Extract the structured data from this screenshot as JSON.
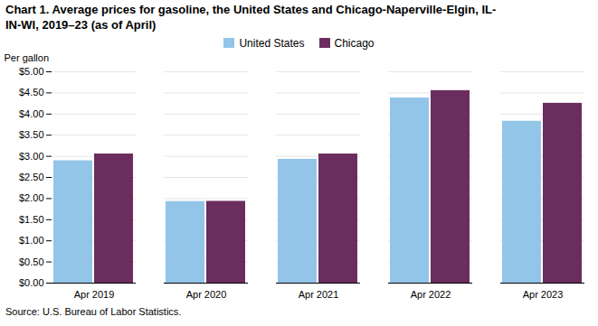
{
  "chart_data": {
    "type": "bar",
    "title": "Chart 1. Average prices for gasoline, the United States and Chicago-Naperville-Elgin, IL-\nIN-WI, 2019–23 (as of April)",
    "ylabel": "Per gallon",
    "source": "Source: U.S. Bureau of Labor Statistics.",
    "categories": [
      "Apr 2019",
      "Apr 2020",
      "Apr 2021",
      "Apr 2022",
      "Apr 2023"
    ],
    "series": [
      {
        "name": "United States",
        "color": "#92C5E8",
        "values": [
          2.895,
          1.93,
          2.93,
          4.38,
          3.83
        ]
      },
      {
        "name": "Chicago",
        "color": "#6B2D5E",
        "values": [
          3.055,
          1.935,
          3.055,
          4.555,
          4.255
        ]
      }
    ],
    "ylim": [
      0,
      5.0
    ],
    "yticks": [
      {
        "value": 0.0,
        "label": "$0.00"
      },
      {
        "value": 0.5,
        "label": "$0.50"
      },
      {
        "value": 1.0,
        "label": "$1.00"
      },
      {
        "value": 1.5,
        "label": "$1.50"
      },
      {
        "value": 2.0,
        "label": "$2.00"
      },
      {
        "value": 2.5,
        "label": "$2.50"
      },
      {
        "value": 3.0,
        "label": "$3.00"
      },
      {
        "value": 3.5,
        "label": "$3.50"
      },
      {
        "value": 4.0,
        "label": "$4.00"
      },
      {
        "value": 4.5,
        "label": "$4.50"
      },
      {
        "value": 5.0,
        "label": "$5.00"
      }
    ],
    "grid": true,
    "legend": "top"
  }
}
